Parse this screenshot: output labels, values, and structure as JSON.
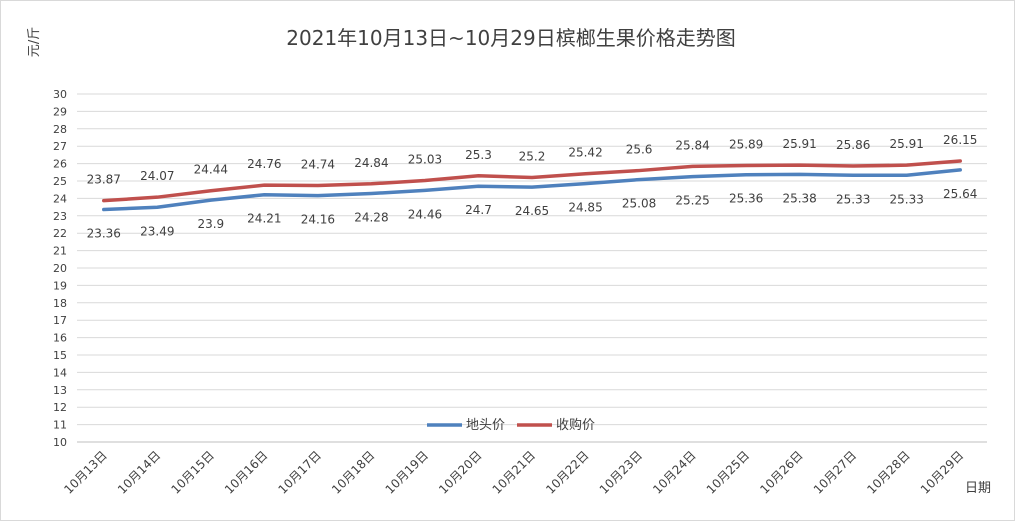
{
  "chart_data": {
    "type": "line",
    "title": "2021年10月13日~10月29日槟榔生果价格走势图",
    "ylabel": "元/斤",
    "xlabel": "日期",
    "ylim": [
      10,
      30
    ],
    "yticks": [
      10,
      11,
      12,
      13,
      14,
      15,
      16,
      17,
      18,
      19,
      20,
      21,
      22,
      23,
      24,
      25,
      26,
      27,
      28,
      29,
      30
    ],
    "grid": true,
    "legend_position": "bottom-center",
    "categories": [
      "10月13日",
      "10月14日",
      "10月15日",
      "10月16日",
      "10月17日",
      "10月18日",
      "10月19日",
      "10月20日",
      "10月21日",
      "10月22日",
      "10月23日",
      "10月24日",
      "10月25日",
      "10月26日",
      "10月27日",
      "10月28日",
      "10月29日"
    ],
    "series": [
      {
        "name": "地头价",
        "color": "#4f81bd",
        "values": [
          23.36,
          23.49,
          23.9,
          24.21,
          24.16,
          24.28,
          24.46,
          24.7,
          24.65,
          24.85,
          25.08,
          25.25,
          25.36,
          25.38,
          25.33,
          25.33,
          25.64
        ],
        "label_position": "below"
      },
      {
        "name": "收购价",
        "color": "#c0504d",
        "values": [
          23.87,
          24.07,
          24.44,
          24.76,
          24.74,
          24.84,
          25.03,
          25.3,
          25.2,
          25.42,
          25.6,
          25.84,
          25.89,
          25.91,
          25.86,
          25.91,
          26.15
        ],
        "label_position": "above"
      }
    ]
  }
}
